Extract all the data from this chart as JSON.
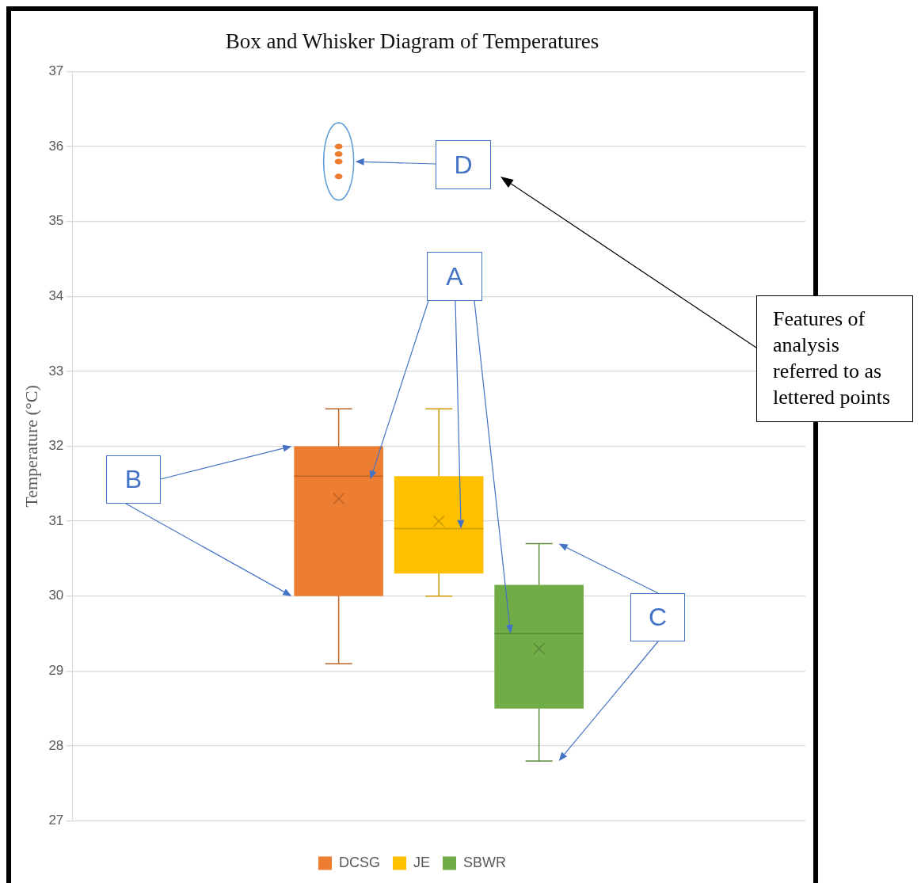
{
  "chart_data": {
    "type": "box",
    "title": "Box and Whisker Diagram of Temperatures",
    "ylabel": "Temperature (°C)",
    "categories": [
      null
    ],
    "ylim": [
      27,
      37
    ],
    "yticks": [
      27,
      28,
      29,
      30,
      31,
      32,
      33,
      34,
      35,
      36,
      37
    ],
    "grid": "y",
    "legend": "bottom",
    "series": [
      {
        "name": "DCSG",
        "color": "#ed7d31",
        "boxes": [
          {
            "low": 29.1,
            "q1": 30.0,
            "median": 31.6,
            "q3": 32.0,
            "high": 32.5,
            "mean": 31.3,
            "outliers": [
              36.0,
              35.9,
              35.8,
              35.6
            ]
          }
        ]
      },
      {
        "name": "JE",
        "color": "#ffc000",
        "boxes": [
          {
            "low": 30.0,
            "q1": 30.3,
            "median": 30.9,
            "q3": 31.6,
            "high": 32.5,
            "mean": 31.0
          }
        ]
      },
      {
        "name": "SBWR",
        "color": "#70ad47",
        "boxes": [
          {
            "low": 27.8,
            "q1": 28.5,
            "median": 29.5,
            "q3": 30.15,
            "high": 30.7,
            "mean": 29.3
          }
        ]
      }
    ],
    "annotations": [
      "A",
      "B",
      "C",
      "D",
      "Features of analysis referred to as lettered points"
    ]
  }
}
